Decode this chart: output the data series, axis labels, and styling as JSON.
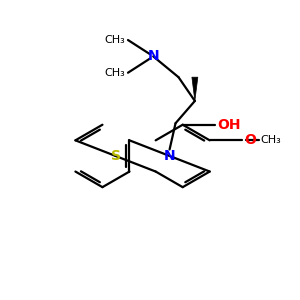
{
  "bg_color": "#ffffff",
  "bond_color": "#000000",
  "N_color": "#0000ff",
  "S_color": "#b8b800",
  "O_color": "#ff0000",
  "lw": 1.6,
  "figsize": [
    3.0,
    3.0
  ],
  "dpi": 100,
  "xlim": [
    0,
    10
  ],
  "ylim": [
    0,
    10
  ],
  "ring_r": 1.05,
  "lcx": 3.4,
  "lcy": 4.8,
  "rcx": 6.1,
  "rcy": 4.8,
  "font_size_atom": 10,
  "font_size_label": 8
}
